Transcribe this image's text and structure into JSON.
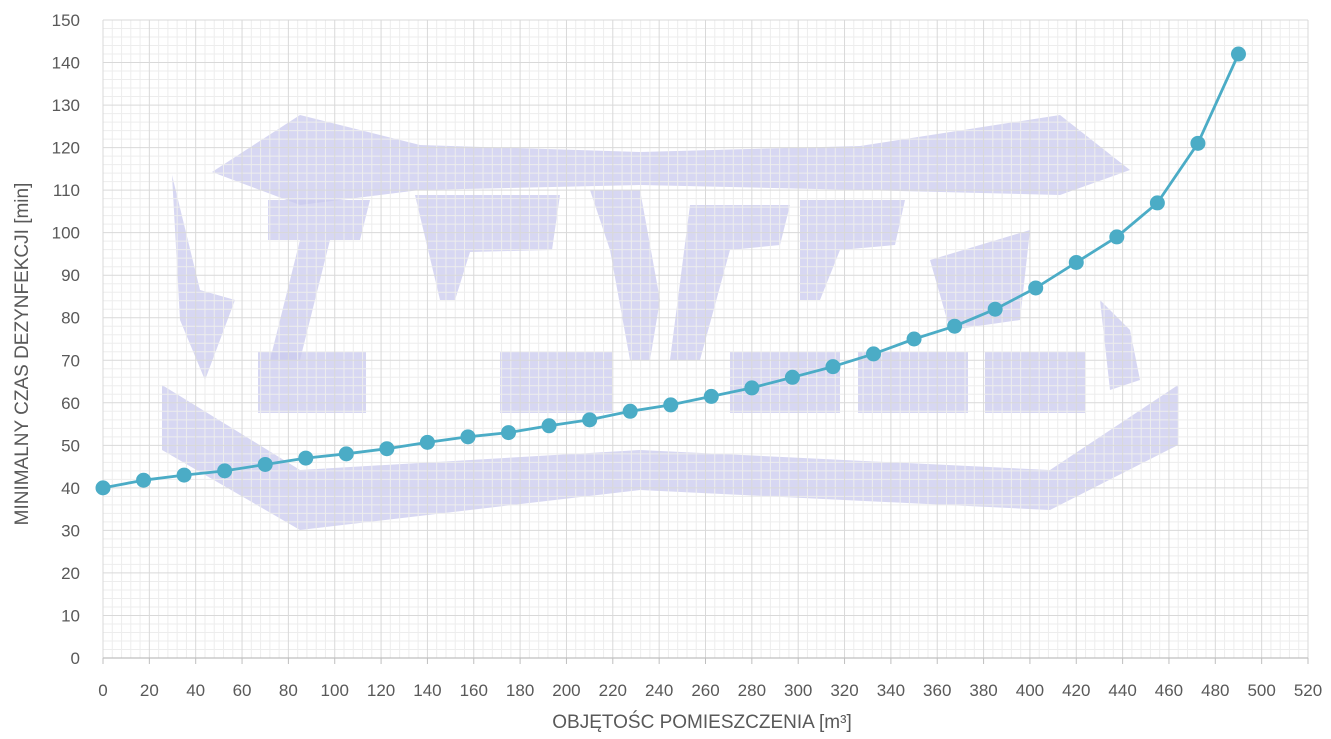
{
  "chart_data": {
    "type": "line",
    "xlabel": "OBJĘTOŚC POMIESZCZENIA [m³]",
    "ylabel": "MINIMALNY CZAS DEZYNFEKCJI [min]",
    "xlim": [
      0,
      520
    ],
    "ylim": [
      0,
      150
    ],
    "x_ticks": [
      0,
      20,
      40,
      60,
      80,
      100,
      120,
      140,
      160,
      180,
      200,
      220,
      240,
      260,
      280,
      300,
      320,
      340,
      360,
      380,
      400,
      420,
      440,
      460,
      480,
      500,
      520
    ],
    "y_ticks": [
      0,
      10,
      20,
      30,
      40,
      50,
      60,
      70,
      80,
      90,
      100,
      110,
      120,
      130,
      140,
      150
    ],
    "x_tick_labels": [
      "0",
      "20",
      "40",
      "60",
      "80",
      "100",
      "120",
      "140",
      "160",
      "180",
      "200",
      "220",
      "240",
      "260",
      "280",
      "300",
      "320",
      "340",
      "360",
      "380",
      "400",
      "420",
      "440",
      "460",
      "480",
      "500",
      "520"
    ],
    "y_tick_labels": [
      "0",
      "10",
      "20",
      "30",
      "40",
      "50",
      "60",
      "70",
      "80",
      "90",
      "100",
      "110",
      "120",
      "130",
      "140",
      "150"
    ],
    "grid": true,
    "legend": "none",
    "series": [
      {
        "color": "#4bacc6",
        "x": [
          0,
          17.5,
          35,
          52.5,
          70,
          87.5,
          105,
          122.5,
          140,
          157.5,
          175,
          192.5,
          210,
          227.5,
          245,
          262.5,
          280,
          297.5,
          315,
          332.5,
          350,
          367.5,
          385,
          402.5,
          420,
          437.5,
          455,
          472.5,
          490
        ],
        "y": [
          40,
          41.8,
          43,
          44,
          45.5,
          47,
          48,
          49.2,
          50.7,
          52,
          53,
          54.6,
          56,
          58,
          59.5,
          61.5,
          63.5,
          66,
          68.5,
          71.5,
          75,
          78,
          82,
          87,
          93,
          99,
          107,
          121,
          142
        ]
      }
    ]
  },
  "colors": {
    "line": "#4bacc6",
    "grid_major": "#d9d9d9",
    "grid_minor": "#ededed",
    "axis": "#bfbfbf",
    "text": "#595959",
    "watermark": "#c9c9ee"
  }
}
